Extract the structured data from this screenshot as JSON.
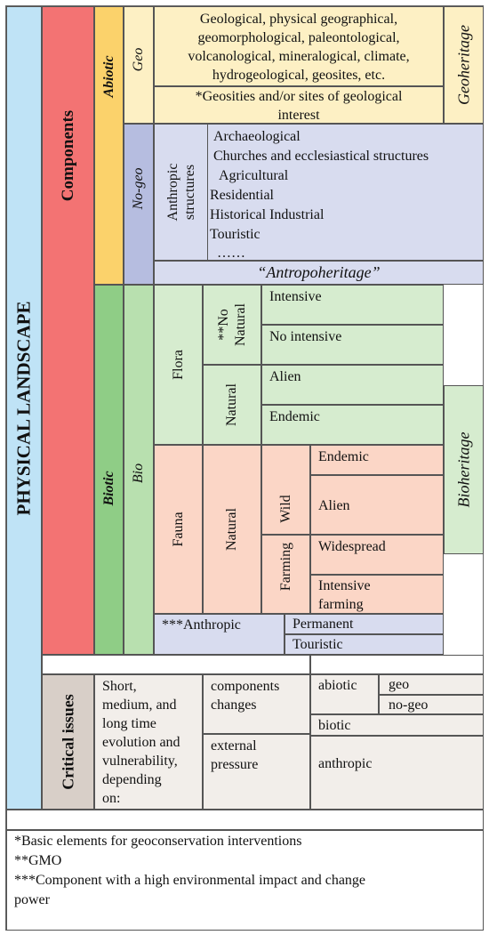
{
  "colors": {
    "physical": "#bfe3f6",
    "components": "#f37373",
    "abiotic": "#fbd26b",
    "geo": "#fdf0c4",
    "nogeo": "#b6bde0",
    "nogeo_light": "#d8dcef",
    "biotic": "#8fcd86",
    "bio": "#b8e0af",
    "flora": "#d6eccf",
    "fauna": "#fbd6c6",
    "anthropic": "#d8dcef",
    "critical": "#d8cfc8",
    "critical_light": "#f2eeea",
    "bioheritage": "#d6eccf"
  },
  "physical_landscape": "PHYSICAL LANDSCAPE",
  "components": "Components",
  "abiotic": "Abiotic",
  "biotic": "Biotic",
  "geo": {
    "label": "Geo",
    "lines": [
      "Geological, physical geographical,",
      "geomorphological, paleontological,",
      "volcanological, mineralogical, climate,",
      "hydrogeological, geosites,  etc."
    ],
    "sites_lines": [
      "*Geosities and/or  sites of geological",
      "interest"
    ],
    "heritage": "Geoheritage"
  },
  "nogeo": {
    "label": "No-geo",
    "anthropic_label": [
      "Anthropic",
      "structures"
    ],
    "items": [
      "Archaeological",
      "Churches and ecclesiastical structures",
      "Agricultural",
      "Residential",
      "Historical Industrial",
      "Touristic",
      "……"
    ],
    "heritage": "“Antropoheritage”"
  },
  "bio": {
    "label": "Bio",
    "flora": "Flora",
    "no_natural": [
      "**No",
      "Natural"
    ],
    "intensive": "Intensive",
    "no_intensive": "No intensive",
    "natural": "Natural",
    "alien": "Alien",
    "endemic": "Endemic",
    "fauna": "Fauna",
    "fauna_natural": "Natural",
    "wild": "Wild",
    "farming": "Farming",
    "fauna_endemic": "Endemic",
    "fauna_alien": "Alien",
    "widespread": "Widespread",
    "intensive_farming": [
      "Intensive",
      "farming"
    ],
    "anthropic": "***Anthropic",
    "permanent": "Permanent",
    "touristic": "Touristic",
    "heritage": "Bioheritage"
  },
  "critical": {
    "label": "Critical issues",
    "evolution_lines": [
      "Short,",
      "medium, and",
      "long time",
      "evolution and",
      "vulnerability,",
      "depending",
      "on:"
    ],
    "components_changes": [
      "components",
      "changes"
    ],
    "external_pressure": [
      "external",
      "pressure"
    ],
    "abiotic": "abiotic",
    "geo": "geo",
    "no_geo": "no-geo",
    "biotic": "biotic",
    "anthropic": "anthropic"
  },
  "footnotes": [
    "*Basic elements for geoconservation interventions",
    "**GMO",
    "***Component with a high environmental impact and change",
    "power"
  ]
}
